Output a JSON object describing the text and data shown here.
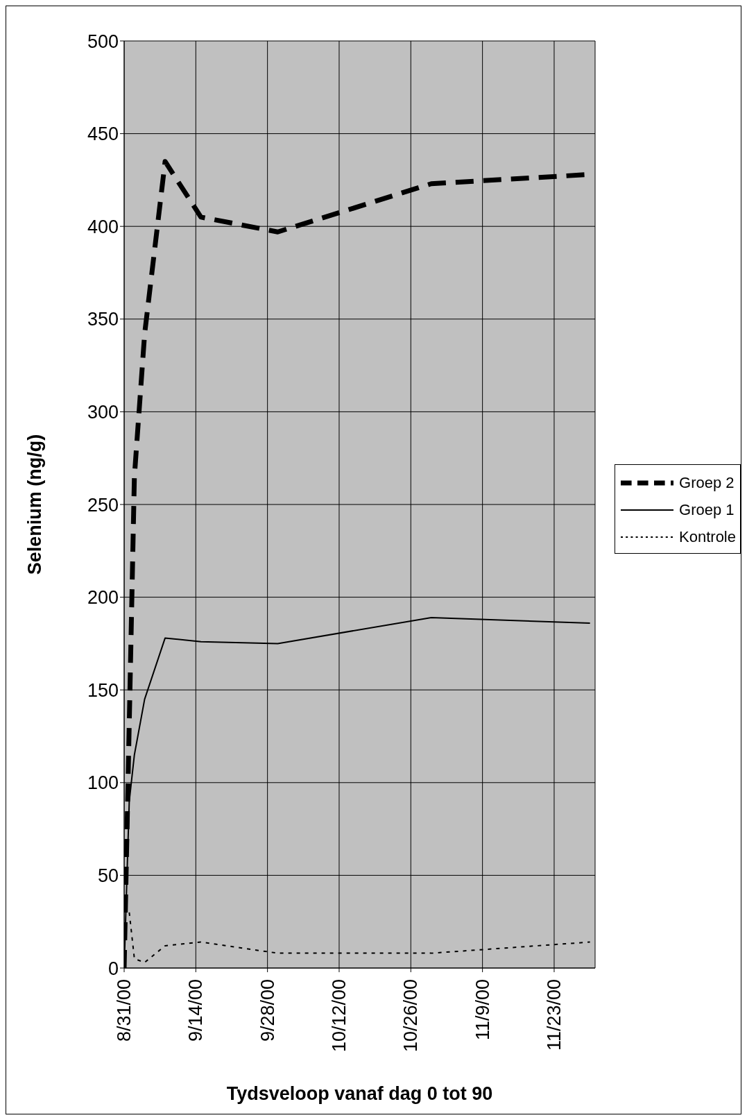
{
  "chart_data": {
    "type": "line",
    "xlabel": "Tydsveloop vanaf dag 0 tot 90",
    "ylabel": "Selenium (ng/g)",
    "x": [
      "2000-08-31",
      "2000-09-01",
      "2000-09-02",
      "2000-09-04",
      "2000-09-08",
      "2000-09-15",
      "2000-09-30",
      "2000-10-30",
      "2000-11-30"
    ],
    "series": [
      {
        "name": "Groep 2",
        "color": "#000000",
        "line_style": "dashed",
        "values": [
          0,
          null,
          265,
          342,
          435,
          405,
          397,
          423,
          428
        ]
      },
      {
        "name": "Groep 1",
        "color": "#000000",
        "line_style": "solid",
        "values": [
          0,
          90,
          115,
          145,
          178,
          176,
          175,
          189,
          186
        ]
      },
      {
        "name": "Kontrole",
        "color": "#000000",
        "line_style": "dotted",
        "values": [
          null,
          30,
          5,
          3,
          12,
          14,
          8,
          8,
          14
        ]
      }
    ],
    "xlim": [
      "2000-08-31",
      "2000-12-01"
    ],
    "xticks": [
      {
        "value": "2000-08-31",
        "label": "8/31/00"
      },
      {
        "value": "2000-09-14",
        "label": "9/14/00"
      },
      {
        "value": "2000-09-28",
        "label": "9/28/00"
      },
      {
        "value": "2000-10-12",
        "label": "10/12/00"
      },
      {
        "value": "2000-10-26",
        "label": "10/26/00"
      },
      {
        "value": "2000-11-09",
        "label": "11/9/00"
      },
      {
        "value": "2000-11-23",
        "label": "11/23/00"
      }
    ],
    "ylim": [
      0,
      500
    ],
    "yticks": [
      0,
      50,
      100,
      150,
      200,
      250,
      300,
      350,
      400,
      450,
      500
    ],
    "grid": true,
    "legend": "right",
    "marker": "none"
  }
}
